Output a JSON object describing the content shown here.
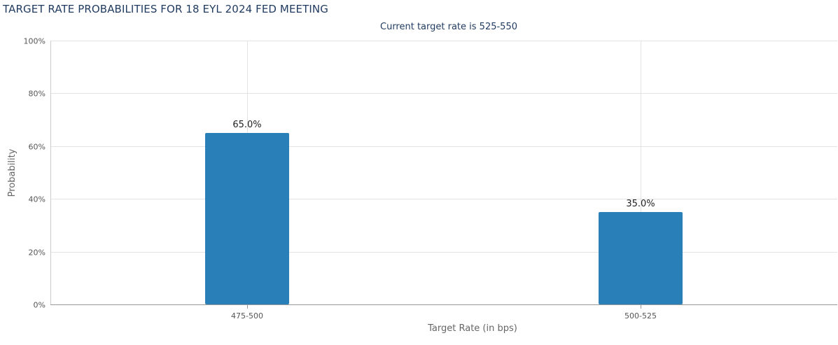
{
  "chart_data": {
    "type": "bar",
    "title": "TARGET RATE PROBABILITIES FOR 18 EYL 2024 FED MEETING",
    "subtitle": "Current target rate is 525-550",
    "xlabel": "Target Rate (in bps)",
    "ylabel": "Probability",
    "categories": [
      "475-500",
      "500-525"
    ],
    "values": [
      65.0,
      35.0
    ],
    "data_labels": [
      "65.0%",
      "35.0%"
    ],
    "ylim": [
      0,
      100
    ],
    "yticks": [
      0,
      20,
      40,
      60,
      80,
      100
    ],
    "ytick_labels": [
      "0%",
      "20%",
      "40%",
      "60%",
      "80%",
      "100%"
    ],
    "grid": true,
    "bar_color": "#2980b9",
    "legend": "none"
  }
}
